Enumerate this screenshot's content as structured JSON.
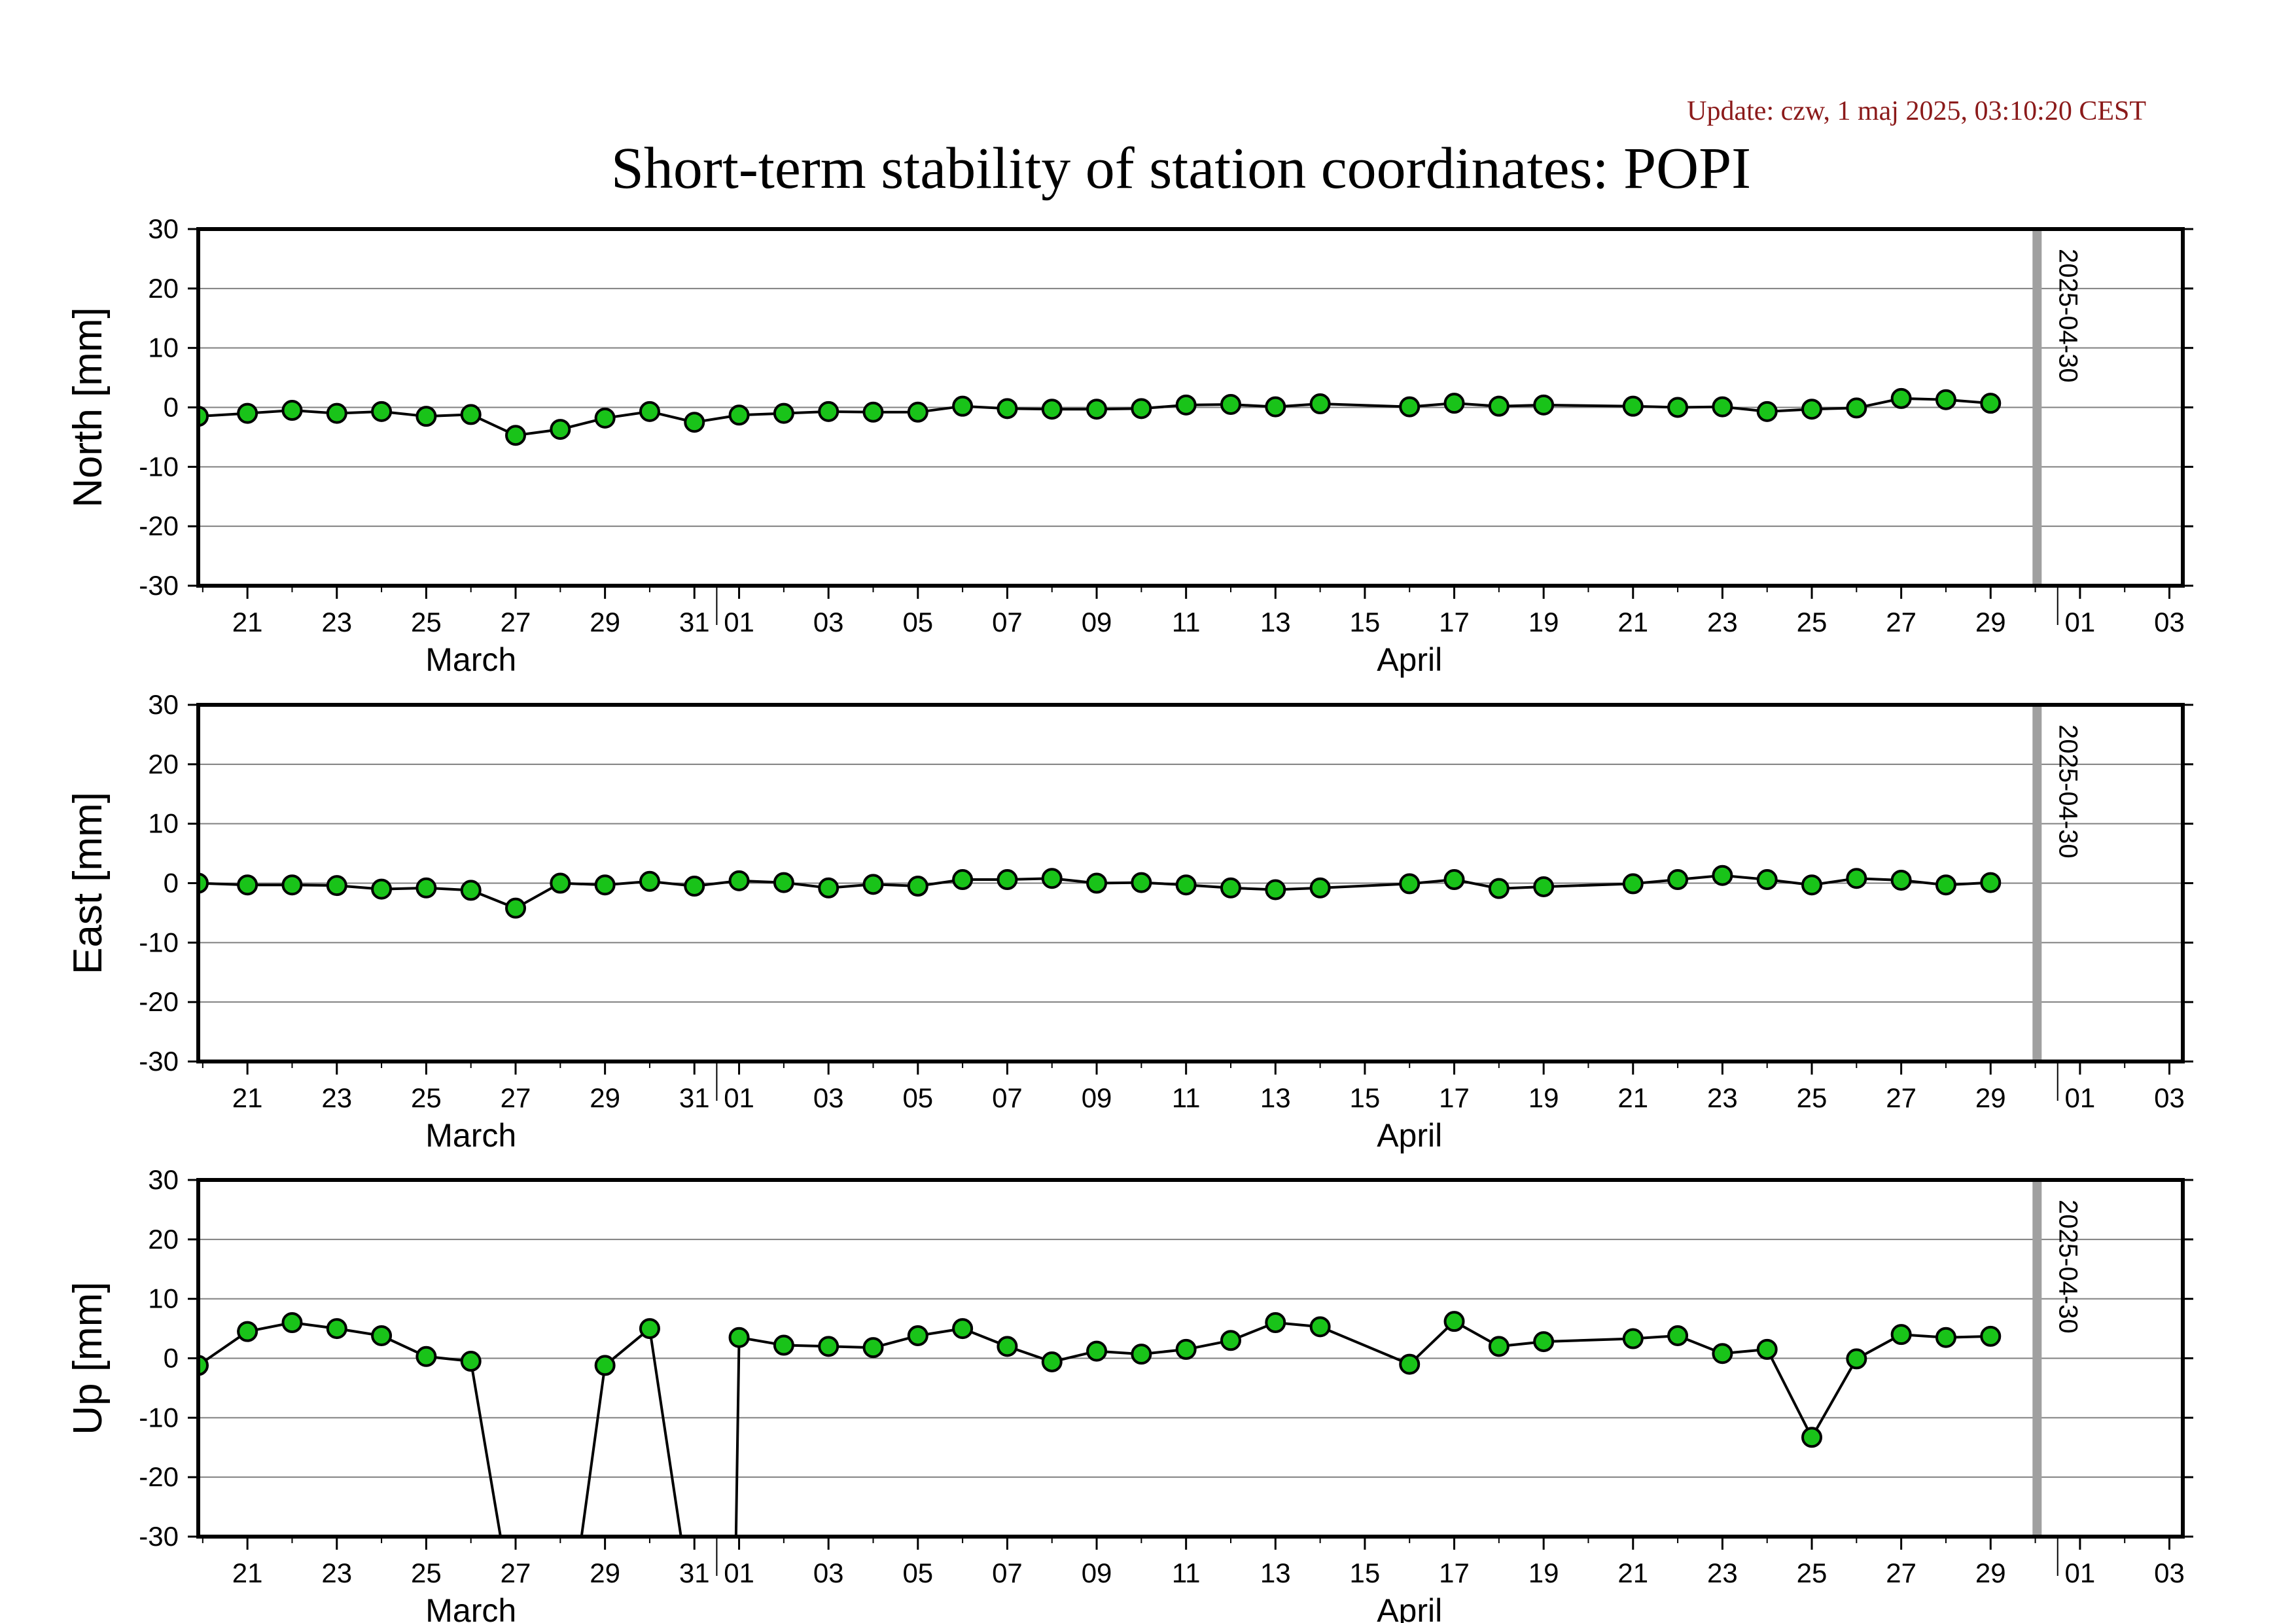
{
  "update_text": "Update: czw, 1 maj 2025, 03:10:20 CEST",
  "title": "Short-term stability of station coordinates: POPI",
  "colors": {
    "update": "#8b1a1a",
    "point_fill": "#19c319",
    "line": "#000000",
    "grid": "#808080",
    "marker_line": "#a0a0a0"
  },
  "chart_data": [
    {
      "type": "line",
      "ylabel": "North [mm]",
      "ylim": [
        -30,
        30
      ],
      "yticks": [
        30,
        20,
        10,
        0,
        -10,
        -20,
        -30
      ],
      "grid": true,
      "x_day_range": [
        19.9,
        64.3
      ],
      "x_tick_labels": [
        "21",
        "23",
        "25",
        "27",
        "29",
        "31",
        "01",
        "03",
        "05",
        "07",
        "09",
        "11",
        "13",
        "15",
        "17",
        "19",
        "21",
        "23",
        "25",
        "27",
        "29",
        "01",
        "03"
      ],
      "month_labels": [
        "March",
        "April"
      ],
      "marker_label": "2025-04-30",
      "segments": [
        [
          [
            19.9,
            -1.5
          ],
          [
            21,
            -1.0
          ],
          [
            22,
            -0.5
          ],
          [
            23,
            -1.0
          ],
          [
            24,
            -0.7
          ],
          [
            25,
            -1.5
          ],
          [
            26,
            -1.2
          ],
          [
            27,
            -4.7
          ],
          [
            28,
            -3.7
          ],
          [
            29,
            -1.8
          ],
          [
            30,
            -0.7
          ],
          [
            31,
            -2.5
          ],
          [
            32,
            -1.3
          ],
          [
            33,
            -1.0
          ],
          [
            34,
            -0.7
          ],
          [
            35,
            -0.8
          ],
          [
            36,
            -0.8
          ],
          [
            37,
            0.2
          ],
          [
            38,
            -0.2
          ],
          [
            39,
            -0.3
          ],
          [
            40,
            -0.3
          ],
          [
            41,
            -0.2
          ],
          [
            42,
            0.4
          ],
          [
            43,
            0.5
          ],
          [
            44,
            0.1
          ],
          [
            45,
            0.6
          ],
          [
            47,
            0.1
          ],
          [
            48,
            0.7
          ],
          [
            49,
            0.2
          ],
          [
            50,
            0.4
          ],
          [
            52,
            0.2
          ],
          [
            53,
            0.0
          ],
          [
            54,
            0.1
          ],
          [
            55,
            -0.7
          ],
          [
            56,
            -0.3
          ],
          [
            57,
            -0.1
          ],
          [
            58,
            1.5
          ],
          [
            59,
            1.3
          ],
          [
            60,
            0.7
          ]
        ]
      ]
    },
    {
      "type": "line",
      "ylabel": "East [mm]",
      "ylim": [
        -30,
        30
      ],
      "yticks": [
        30,
        20,
        10,
        0,
        -10,
        -20,
        -30
      ],
      "grid": true,
      "x_day_range": [
        19.9,
        64.3
      ],
      "x_tick_labels": [
        "21",
        "23",
        "25",
        "27",
        "29",
        "31",
        "01",
        "03",
        "05",
        "07",
        "09",
        "11",
        "13",
        "15",
        "17",
        "19",
        "21",
        "23",
        "25",
        "27",
        "29",
        "01",
        "03"
      ],
      "month_labels": [
        "March",
        "April"
      ],
      "marker_label": "2025-04-30",
      "segments": [
        [
          [
            19.9,
            0.0
          ],
          [
            21,
            -0.3
          ],
          [
            22,
            -0.3
          ],
          [
            23,
            -0.4
          ],
          [
            24,
            -1.0
          ],
          [
            25,
            -0.8
          ],
          [
            26,
            -1.2
          ],
          [
            27,
            -4.2
          ],
          [
            28,
            0.0
          ],
          [
            29,
            -0.3
          ],
          [
            30,
            0.3
          ],
          [
            31,
            -0.5
          ],
          [
            32,
            0.4
          ],
          [
            33,
            0.1
          ],
          [
            34,
            -0.8
          ],
          [
            35,
            -0.2
          ],
          [
            36,
            -0.5
          ],
          [
            37,
            0.6
          ],
          [
            38,
            0.6
          ],
          [
            39,
            0.8
          ],
          [
            40,
            0.0
          ],
          [
            41,
            0.1
          ],
          [
            42,
            -0.3
          ],
          [
            43,
            -0.8
          ],
          [
            44,
            -1.1
          ],
          [
            45,
            -0.8
          ],
          [
            47,
            -0.1
          ],
          [
            48,
            0.6
          ],
          [
            49,
            -0.9
          ],
          [
            50,
            -0.6
          ],
          [
            52,
            -0.1
          ],
          [
            53,
            0.6
          ],
          [
            54,
            1.3
          ],
          [
            55,
            0.6
          ],
          [
            56,
            -0.3
          ],
          [
            57,
            0.8
          ],
          [
            58,
            0.5
          ],
          [
            59,
            -0.3
          ],
          [
            60,
            0.1
          ]
        ]
      ]
    },
    {
      "type": "line",
      "ylabel": "Up [mm]",
      "ylim": [
        -30,
        30
      ],
      "yticks": [
        30,
        20,
        10,
        0,
        -10,
        -20,
        -30
      ],
      "grid": true,
      "x_day_range": [
        19.9,
        64.3
      ],
      "x_tick_labels": [
        "21",
        "23",
        "25",
        "27",
        "29",
        "31",
        "01",
        "03",
        "05",
        "07",
        "09",
        "11",
        "13",
        "15",
        "17",
        "19",
        "21",
        "23",
        "25",
        "27",
        "29",
        "01",
        "03"
      ],
      "month_labels": [
        "March",
        "April"
      ],
      "marker_label": "2025-04-30",
      "segments": [
        [
          [
            19.9,
            -1.2
          ],
          [
            21,
            4.5
          ],
          [
            22,
            6.0
          ],
          [
            23,
            5.0
          ],
          [
            24,
            3.8
          ],
          [
            25,
            0.3
          ],
          [
            26,
            -0.5
          ],
          [
            27,
            -45
          ],
          [
            28.2,
            -45
          ],
          [
            29,
            -1.2
          ],
          [
            30,
            5.0
          ],
          [
            31,
            -45
          ],
          [
            31.9,
            -45
          ],
          [
            32,
            3.5
          ],
          [
            33,
            2.2
          ],
          [
            34,
            2.0
          ],
          [
            35,
            1.8
          ],
          [
            36,
            3.8
          ],
          [
            37,
            5.0
          ],
          [
            38,
            2.0
          ],
          [
            39,
            -0.6
          ],
          [
            40,
            1.2
          ],
          [
            41,
            0.7
          ],
          [
            42,
            1.5
          ],
          [
            43,
            3.0
          ],
          [
            44,
            6.0
          ],
          [
            45,
            5.3
          ],
          [
            47,
            -1.0
          ],
          [
            48,
            6.2
          ],
          [
            49,
            2.0
          ],
          [
            50,
            2.8
          ],
          [
            52,
            3.3
          ],
          [
            53,
            3.8
          ],
          [
            54,
            0.8
          ],
          [
            55,
            1.5
          ],
          [
            56,
            -13.3
          ],
          [
            57,
            -0.1
          ],
          [
            58,
            4.0
          ],
          [
            59,
            3.5
          ],
          [
            60,
            3.7
          ]
        ]
      ],
      "clipped_points": [
        [
          27,
          -45
        ],
        [
          28.2,
          -45
        ],
        [
          31,
          -45
        ],
        [
          31.9,
          -45
        ]
      ]
    }
  ]
}
